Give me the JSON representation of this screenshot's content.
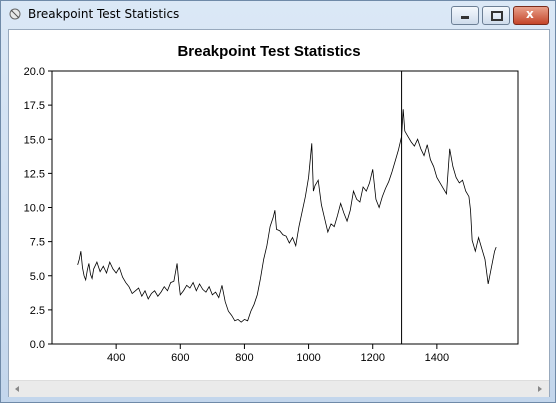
{
  "window": {
    "title": "Breakpoint Test Statistics"
  },
  "chart_data": {
    "type": "line",
    "title": "Breakpoint Test Statistics",
    "color": "#000000",
    "grid": false,
    "vline": 1290,
    "xlim": [
      200,
      1653
    ],
    "ylim": [
      0,
      20
    ],
    "xticks": [
      400,
      600,
      800,
      1000,
      1200,
      1400
    ],
    "yticks": [
      {
        "value": 0,
        "label": "0.0"
      },
      {
        "value": 2.5,
        "label": "2.5"
      },
      {
        "value": 5,
        "label": "5.0"
      },
      {
        "value": 7.5,
        "label": "7.5"
      },
      {
        "value": 10,
        "label": "10.0"
      },
      {
        "value": 12.5,
        "label": "12.5"
      },
      {
        "value": 15,
        "label": "15.0"
      },
      {
        "value": 17.5,
        "label": "17.5"
      },
      {
        "value": 20,
        "label": "20.0"
      }
    ],
    "x": [
      280,
      285,
      290,
      295,
      300,
      305,
      310,
      315,
      320,
      325,
      330,
      340,
      350,
      360,
      370,
      380,
      390,
      400,
      410,
      420,
      430,
      440,
      450,
      460,
      470,
      480,
      490,
      500,
      510,
      520,
      530,
      540,
      550,
      560,
      570,
      580,
      590,
      595,
      600,
      610,
      620,
      630,
      640,
      650,
      660,
      670,
      680,
      690,
      700,
      710,
      720,
      730,
      740,
      750,
      760,
      770,
      780,
      790,
      800,
      810,
      820,
      830,
      840,
      850,
      860,
      870,
      880,
      890,
      895,
      900,
      910,
      920,
      930,
      940,
      950,
      960,
      970,
      980,
      990,
      1000,
      1010,
      1015,
      1020,
      1030,
      1040,
      1050,
      1060,
      1070,
      1080,
      1090,
      1100,
      1110,
      1120,
      1130,
      1140,
      1150,
      1160,
      1170,
      1180,
      1190,
      1200,
      1210,
      1220,
      1230,
      1240,
      1250,
      1260,
      1270,
      1280,
      1290,
      1295,
      1300,
      1310,
      1320,
      1330,
      1340,
      1350,
      1360,
      1370,
      1380,
      1390,
      1400,
      1410,
      1420,
      1430,
      1440,
      1450,
      1460,
      1470,
      1480,
      1490,
      1500,
      1505,
      1510,
      1520,
      1530,
      1540,
      1550,
      1560,
      1570,
      1580,
      1585
    ],
    "values": [
      5.8,
      6.2,
      6.8,
      5.6,
      5.0,
      4.7,
      5.4,
      5.9,
      5.1,
      4.8,
      5.5,
      6.0,
      5.3,
      5.7,
      5.2,
      6.0,
      5.5,
      5.2,
      5.6,
      4.9,
      4.5,
      4.2,
      3.7,
      3.9,
      4.1,
      3.5,
      3.9,
      3.3,
      3.7,
      3.9,
      3.5,
      3.8,
      4.2,
      3.9,
      4.5,
      4.6,
      5.9,
      4.6,
      3.6,
      3.9,
      4.3,
      4.1,
      4.5,
      3.9,
      4.4,
      4.0,
      3.8,
      4.2,
      3.6,
      3.8,
      3.4,
      4.3,
      3.1,
      2.4,
      2.1,
      1.7,
      1.8,
      1.6,
      1.8,
      1.7,
      2.4,
      2.9,
      3.6,
      4.8,
      6.2,
      7.2,
      8.6,
      9.3,
      9.8,
      8.4,
      8.3,
      8.0,
      7.9,
      7.4,
      7.8,
      7.2,
      8.6,
      9.7,
      10.8,
      12.2,
      14.7,
      11.2,
      11.6,
      12.0,
      10.2,
      9.2,
      8.2,
      8.8,
      8.6,
      9.4,
      10.3,
      9.6,
      9.0,
      9.8,
      11.2,
      10.6,
      10.4,
      11.5,
      11.2,
      11.8,
      12.8,
      10.6,
      10.0,
      10.8,
      11.4,
      11.9,
      12.6,
      13.4,
      14.2,
      15.2,
      17.2,
      15.6,
      15.2,
      14.8,
      14.5,
      15.0,
      14.3,
      13.8,
      14.6,
      13.5,
      13.0,
      12.2,
      11.8,
      11.4,
      11.0,
      14.3,
      13.0,
      12.2,
      11.8,
      12.0,
      11.2,
      10.8,
      9.8,
      7.6,
      6.8,
      7.8,
      7.0,
      6.2,
      4.4,
      5.6,
      6.8,
      7.1
    ]
  }
}
